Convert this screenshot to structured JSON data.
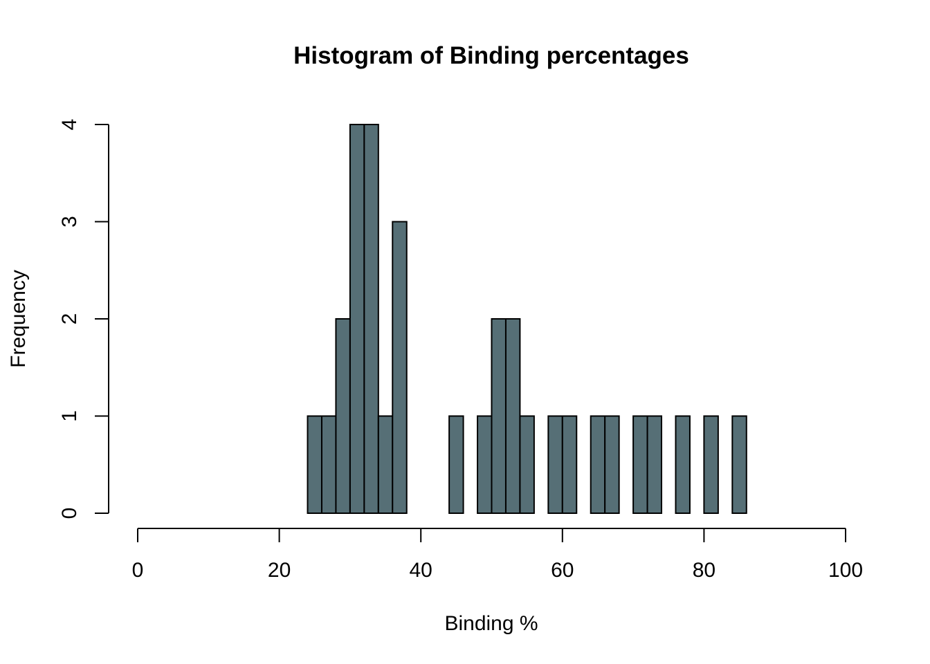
{
  "chart_data": {
    "type": "bar",
    "title": "Histogram of Binding percentages",
    "xlabel": "Binding %",
    "ylabel": "Frequency",
    "bar_color": "#566f76",
    "xlim": [
      0,
      100
    ],
    "ylim": [
      0,
      4
    ],
    "x_ticks": [
      0,
      20,
      40,
      60,
      80,
      100
    ],
    "x_tick_labels": [
      "0",
      "20",
      "40",
      "60",
      "80",
      "100"
    ],
    "y_ticks": [
      0,
      1,
      2,
      3,
      4
    ],
    "y_tick_labels": [
      "0",
      "1",
      "2",
      "3",
      "4"
    ],
    "bin_width": 2,
    "bin_starts": [
      24,
      26,
      28,
      30,
      32,
      34,
      36,
      38,
      40,
      42,
      44,
      46,
      48,
      50,
      52,
      54,
      56,
      58,
      60,
      62,
      64,
      66,
      68,
      70,
      72,
      74,
      76,
      78,
      80,
      82,
      84
    ],
    "values": [
      1,
      1,
      2,
      4,
      4,
      1,
      3,
      0,
      0,
      0,
      1,
      0,
      1,
      2,
      2,
      1,
      0,
      1,
      1,
      0,
      1,
      1,
      0,
      1,
      1,
      0,
      1,
      0,
      1,
      0,
      1
    ],
    "grid": false
  }
}
